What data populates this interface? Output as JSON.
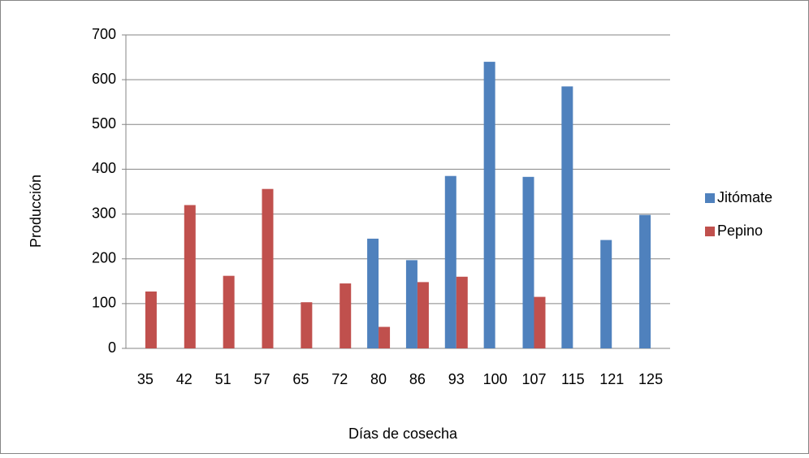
{
  "chart_data": {
    "type": "bar",
    "categories": [
      "35",
      "42",
      "51",
      "57",
      "65",
      "72",
      "80",
      "86",
      "93",
      "100",
      "107",
      "115",
      "121",
      "125"
    ],
    "series": [
      {
        "name": "Jitómate",
        "color": "#4f81bd",
        "values": [
          null,
          null,
          null,
          null,
          null,
          null,
          245,
          197,
          385,
          640,
          383,
          585,
          242,
          298
        ]
      },
      {
        "name": "Pepino",
        "color": "#c0504d",
        "values": [
          127,
          320,
          162,
          356,
          103,
          145,
          48,
          148,
          160,
          null,
          115,
          null,
          null,
          null
        ]
      }
    ],
    "xlabel": "Días de cosecha",
    "ylabel": "Producción",
    "ylim": [
      0,
      700
    ],
    "yticks": [
      0,
      100,
      200,
      300,
      400,
      500,
      600,
      700
    ],
    "grid": true,
    "legend": "right"
  }
}
